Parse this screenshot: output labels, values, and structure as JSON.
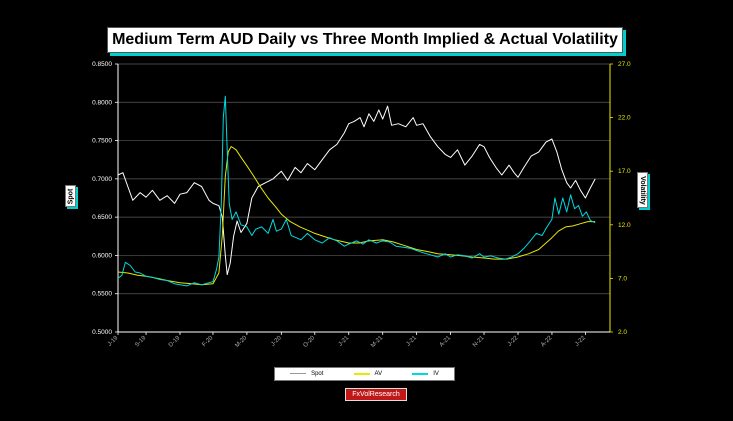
{
  "title": "Medium Term AUD Daily vs Three Month Implied & Actual Volatility",
  "brand": "FxVolResearch",
  "chart_data": {
    "type": "line",
    "title": "Medium Term AUD Daily vs Three Month Implied & Actual Volatility",
    "ylabel": "Spot",
    "y2label": "Volatility",
    "ylim": [
      0.5,
      0.85
    ],
    "y2lim": [
      2,
      27
    ],
    "yticks": [
      "0.5000",
      "0.5500",
      "0.6000",
      "0.6500",
      "0.7000",
      "0.7500",
      "0.8000",
      "0.8500"
    ],
    "y2ticks": [
      "2.0",
      "7.0",
      "12.0",
      "17.0",
      "22.0",
      "27.0"
    ],
    "x_range": [
      0,
      1000
    ],
    "xticks": [
      {
        "x": 0,
        "label": "J-19"
      },
      {
        "x": 57,
        "label": "S-19"
      },
      {
        "x": 126,
        "label": "D-19"
      },
      {
        "x": 193,
        "label": "F-20"
      },
      {
        "x": 262,
        "label": "M-20"
      },
      {
        "x": 332,
        "label": "J-20"
      },
      {
        "x": 400,
        "label": "O-20"
      },
      {
        "x": 469,
        "label": "J-21"
      },
      {
        "x": 538,
        "label": "M-21"
      },
      {
        "x": 607,
        "label": "J-21"
      },
      {
        "x": 676,
        "label": "A-21"
      },
      {
        "x": 744,
        "label": "N-21"
      },
      {
        "x": 813,
        "label": "J-22"
      },
      {
        "x": 882,
        "label": "A-22"
      },
      {
        "x": 950,
        "label": "J-22"
      }
    ],
    "grid": true,
    "legend_position": "bottom-center",
    "series": [
      {
        "name": "Spot",
        "axis": "left",
        "color": "#ffffff",
        "points": [
          [
            0,
            0.705
          ],
          [
            10,
            0.708
          ],
          [
            20,
            0.69
          ],
          [
            30,
            0.672
          ],
          [
            45,
            0.682
          ],
          [
            57,
            0.676
          ],
          [
            70,
            0.685
          ],
          [
            85,
            0.672
          ],
          [
            100,
            0.678
          ],
          [
            115,
            0.668
          ],
          [
            126,
            0.68
          ],
          [
            140,
            0.682
          ],
          [
            155,
            0.695
          ],
          [
            170,
            0.69
          ],
          [
            185,
            0.672
          ],
          [
            193,
            0.668
          ],
          [
            205,
            0.665
          ],
          [
            212,
            0.65
          ],
          [
            218,
            0.6
          ],
          [
            222,
            0.575
          ],
          [
            228,
            0.59
          ],
          [
            235,
            0.625
          ],
          [
            242,
            0.645
          ],
          [
            250,
            0.63
          ],
          [
            262,
            0.642
          ],
          [
            272,
            0.675
          ],
          [
            285,
            0.69
          ],
          [
            300,
            0.695
          ],
          [
            315,
            0.7
          ],
          [
            332,
            0.71
          ],
          [
            345,
            0.698
          ],
          [
            360,
            0.715
          ],
          [
            372,
            0.708
          ],
          [
            385,
            0.72
          ],
          [
            400,
            0.712
          ],
          [
            415,
            0.725
          ],
          [
            430,
            0.738
          ],
          [
            445,
            0.745
          ],
          [
            460,
            0.76
          ],
          [
            469,
            0.772
          ],
          [
            480,
            0.775
          ],
          [
            492,
            0.78
          ],
          [
            500,
            0.768
          ],
          [
            510,
            0.785
          ],
          [
            520,
            0.775
          ],
          [
            530,
            0.79
          ],
          [
            538,
            0.778
          ],
          [
            548,
            0.795
          ],
          [
            556,
            0.77
          ],
          [
            570,
            0.772
          ],
          [
            585,
            0.768
          ],
          [
            600,
            0.78
          ],
          [
            607,
            0.77
          ],
          [
            620,
            0.772
          ],
          [
            635,
            0.755
          ],
          [
            650,
            0.742
          ],
          [
            665,
            0.732
          ],
          [
            676,
            0.728
          ],
          [
            690,
            0.738
          ],
          [
            705,
            0.718
          ],
          [
            720,
            0.73
          ],
          [
            735,
            0.745
          ],
          [
            744,
            0.742
          ],
          [
            755,
            0.728
          ],
          [
            768,
            0.715
          ],
          [
            780,
            0.705
          ],
          [
            795,
            0.718
          ],
          [
            805,
            0.708
          ],
          [
            813,
            0.702
          ],
          [
            825,
            0.715
          ],
          [
            840,
            0.73
          ],
          [
            855,
            0.735
          ],
          [
            870,
            0.748
          ],
          [
            882,
            0.752
          ],
          [
            892,
            0.735
          ],
          [
            902,
            0.712
          ],
          [
            912,
            0.695
          ],
          [
            920,
            0.688
          ],
          [
            930,
            0.698
          ],
          [
            940,
            0.685
          ],
          [
            950,
            0.675
          ],
          [
            960,
            0.688
          ],
          [
            970,
            0.7
          ]
        ]
      },
      {
        "name": "AV",
        "axis": "right",
        "color": "#e8e800",
        "points": [
          [
            0,
            7.6
          ],
          [
            20,
            7.5
          ],
          [
            40,
            7.3
          ],
          [
            57,
            7.2
          ],
          [
            80,
            7.0
          ],
          [
            100,
            6.8
          ],
          [
            126,
            6.6
          ],
          [
            150,
            6.5
          ],
          [
            170,
            6.4
          ],
          [
            193,
            6.5
          ],
          [
            205,
            7.5
          ],
          [
            212,
            11.0
          ],
          [
            218,
            16.5
          ],
          [
            224,
            18.8
          ],
          [
            230,
            19.3
          ],
          [
            240,
            19.0
          ],
          [
            250,
            18.3
          ],
          [
            262,
            17.5
          ],
          [
            275,
            16.6
          ],
          [
            290,
            15.5
          ],
          [
            305,
            14.5
          ],
          [
            320,
            13.7
          ],
          [
            332,
            13.0
          ],
          [
            350,
            12.3
          ],
          [
            370,
            11.8
          ],
          [
            390,
            11.4
          ],
          [
            400,
            11.2
          ],
          [
            420,
            10.9
          ],
          [
            440,
            10.6
          ],
          [
            469,
            10.3
          ],
          [
            490,
            10.3
          ],
          [
            510,
            10.5
          ],
          [
            538,
            10.6
          ],
          [
            560,
            10.4
          ],
          [
            580,
            10.1
          ],
          [
            607,
            9.7
          ],
          [
            630,
            9.5
          ],
          [
            650,
            9.3
          ],
          [
            676,
            9.2
          ],
          [
            700,
            9.1
          ],
          [
            720,
            9.0
          ],
          [
            744,
            8.9
          ],
          [
            765,
            8.8
          ],
          [
            790,
            8.8
          ],
          [
            813,
            9.0
          ],
          [
            835,
            9.3
          ],
          [
            855,
            9.7
          ],
          [
            870,
            10.3
          ],
          [
            882,
            10.8
          ],
          [
            895,
            11.4
          ],
          [
            910,
            11.8
          ],
          [
            925,
            11.9
          ],
          [
            940,
            12.1
          ],
          [
            955,
            12.3
          ],
          [
            970,
            12.3
          ]
        ]
      },
      {
        "name": "IV",
        "axis": "right",
        "color": "#00d8e0",
        "points": [
          [
            0,
            7.0
          ],
          [
            8,
            7.3
          ],
          [
            15,
            8.5
          ],
          [
            25,
            8.2
          ],
          [
            35,
            7.6
          ],
          [
            45,
            7.5
          ],
          [
            57,
            7.2
          ],
          [
            70,
            7.1
          ],
          [
            85,
            6.9
          ],
          [
            100,
            6.8
          ],
          [
            115,
            6.5
          ],
          [
            126,
            6.4
          ],
          [
            140,
            6.3
          ],
          [
            155,
            6.6
          ],
          [
            170,
            6.4
          ],
          [
            185,
            6.6
          ],
          [
            193,
            6.7
          ],
          [
            200,
            7.8
          ],
          [
            205,
            9.0
          ],
          [
            210,
            14.0
          ],
          [
            214,
            22.0
          ],
          [
            218,
            24.0
          ],
          [
            222,
            19.0
          ],
          [
            226,
            14.0
          ],
          [
            232,
            12.5
          ],
          [
            240,
            13.2
          ],
          [
            250,
            12.0
          ],
          [
            262,
            11.8
          ],
          [
            272,
            11.0
          ],
          [
            280,
            11.6
          ],
          [
            292,
            11.8
          ],
          [
            305,
            11.2
          ],
          [
            315,
            12.5
          ],
          [
            322,
            11.4
          ],
          [
            332,
            11.6
          ],
          [
            342,
            12.5
          ],
          [
            352,
            11.0
          ],
          [
            362,
            10.8
          ],
          [
            372,
            10.6
          ],
          [
            385,
            11.2
          ],
          [
            400,
            10.6
          ],
          [
            415,
            10.3
          ],
          [
            430,
            10.8
          ],
          [
            445,
            10.5
          ],
          [
            460,
            10.0
          ],
          [
            469,
            10.2
          ],
          [
            485,
            10.5
          ],
          [
            498,
            10.2
          ],
          [
            510,
            10.6
          ],
          [
            525,
            10.3
          ],
          [
            538,
            10.5
          ],
          [
            552,
            10.4
          ],
          [
            565,
            10.0
          ],
          [
            580,
            9.9
          ],
          [
            595,
            9.8
          ],
          [
            607,
            9.6
          ],
          [
            620,
            9.4
          ],
          [
            635,
            9.2
          ],
          [
            650,
            9.0
          ],
          [
            665,
            9.3
          ],
          [
            676,
            9.0
          ],
          [
            690,
            9.2
          ],
          [
            705,
            9.1
          ],
          [
            720,
            8.9
          ],
          [
            735,
            9.3
          ],
          [
            744,
            9.0
          ],
          [
            758,
            9.1
          ],
          [
            772,
            8.9
          ],
          [
            788,
            8.8
          ],
          [
            800,
            9.0
          ],
          [
            813,
            9.3
          ],
          [
            825,
            9.8
          ],
          [
            838,
            10.5
          ],
          [
            850,
            11.2
          ],
          [
            862,
            11.0
          ],
          [
            872,
            11.8
          ],
          [
            882,
            12.5
          ],
          [
            888,
            14.5
          ],
          [
            896,
            13.0
          ],
          [
            904,
            14.5
          ],
          [
            912,
            13.2
          ],
          [
            920,
            14.8
          ],
          [
            928,
            13.5
          ],
          [
            936,
            13.8
          ],
          [
            944,
            12.8
          ],
          [
            952,
            13.2
          ],
          [
            960,
            12.4
          ],
          [
            970,
            12.2
          ]
        ]
      }
    ]
  }
}
